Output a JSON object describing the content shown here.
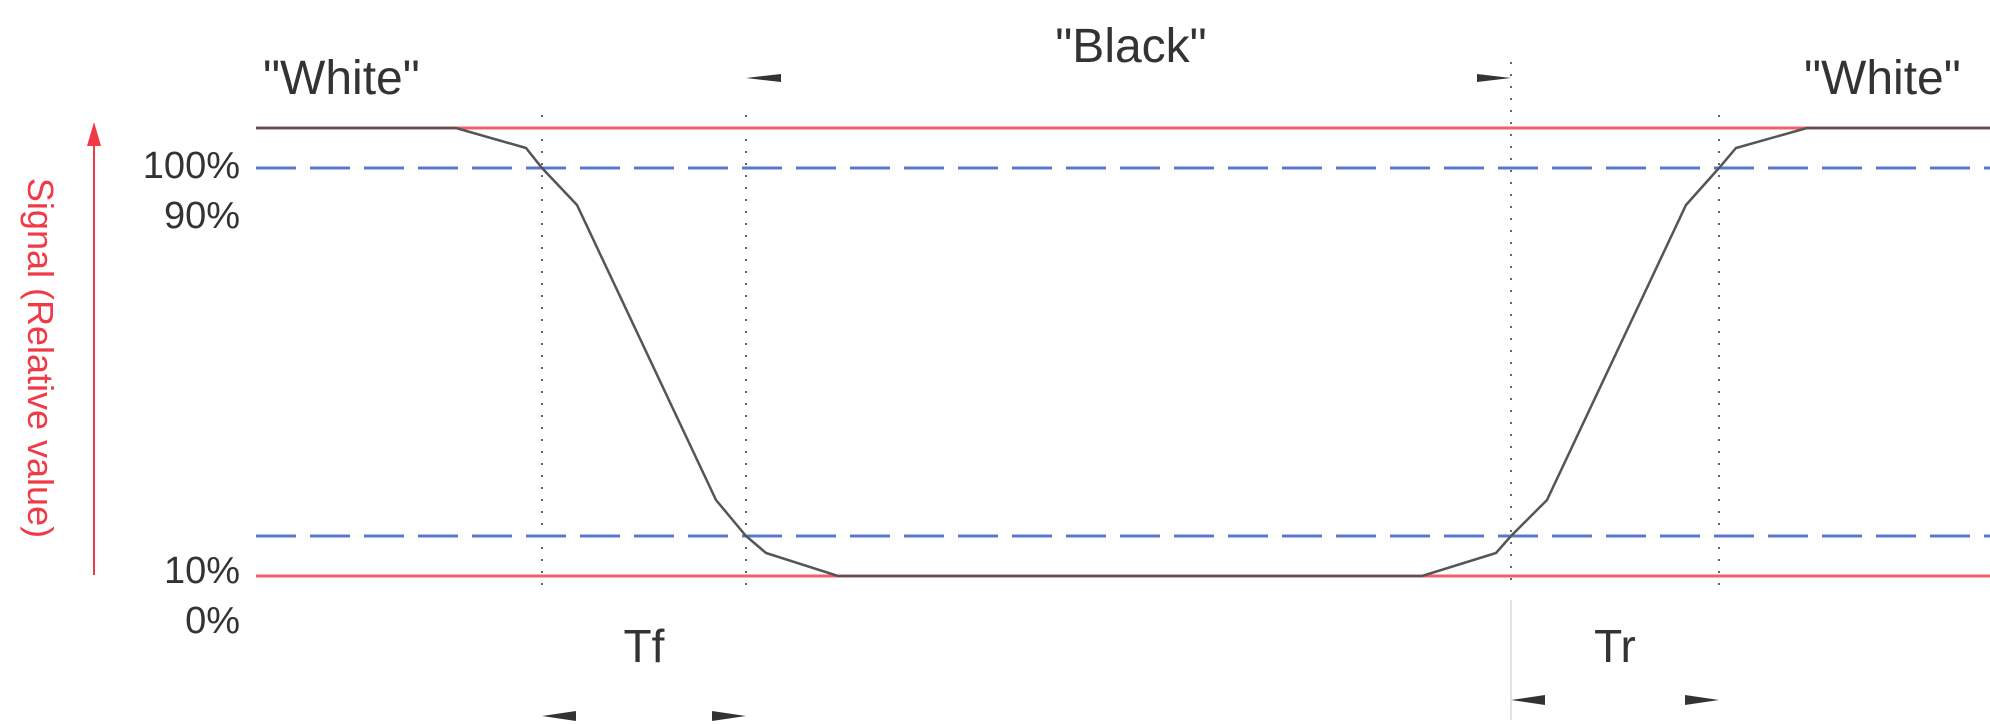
{
  "labels": {
    "white_left": "\"White\"",
    "black": "\"Black\"",
    "white_right": "\"White\"",
    "pct_100": "100%",
    "pct_90": "90%",
    "pct_10": "10%",
    "pct_0": "0%",
    "fall_time": "Tf",
    "rise_time": "Tr",
    "y_axis": "Signal (Relative value)"
  },
  "colors": {
    "level_line": "#f0606a",
    "threshold_line": "#5a78c8",
    "signal_curve": "#555555",
    "marker_line": "#666666",
    "axis_label": "#f03a46",
    "text": "#333333"
  },
  "levels": {
    "white_percent": 100,
    "black_percent": 0,
    "upper_threshold_percent": 90,
    "lower_threshold_percent": 10
  }
}
